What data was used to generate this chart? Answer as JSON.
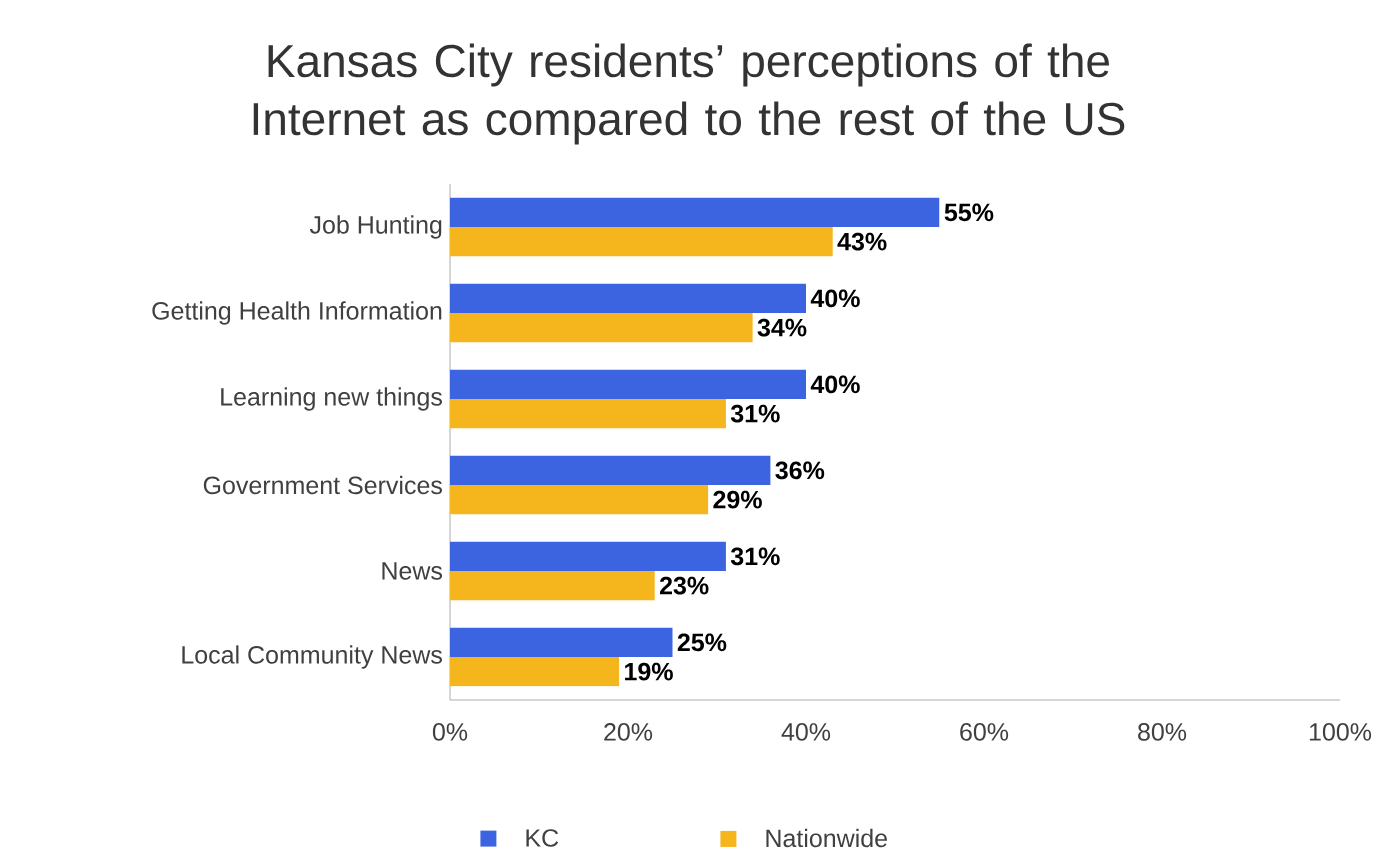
{
  "chart_data": {
    "type": "bar",
    "orientation": "horizontal",
    "title": "Kansas City residents’ perceptions of the Internet as compared to the rest of the US",
    "categories": [
      "Job Hunting",
      "Getting Health Information",
      "Learning new things",
      "Government Services",
      "News",
      "Local Community News"
    ],
    "series": [
      {
        "name": "KC",
        "color": "#3d64e0",
        "values": [
          55,
          40,
          40,
          36,
          31,
          25
        ],
        "value_labels": [
          "55%",
          "40%",
          "40%",
          "36%",
          "31%",
          "25%"
        ]
      },
      {
        "name": "Nationwide",
        "color": "#f5b51c",
        "values": [
          43,
          34,
          31,
          29,
          23,
          19
        ],
        "value_labels": [
          "43%",
          "34%",
          "31%",
          "29%",
          "23%",
          "19%"
        ]
      }
    ],
    "xlim": [
      0,
      100
    ],
    "xticks": [
      {
        "value": 0,
        "label": "0%"
      },
      {
        "value": 20,
        "label": "20%"
      },
      {
        "value": 40,
        "label": "40%"
      },
      {
        "value": 60,
        "label": "60%"
      },
      {
        "value": 80,
        "label": "80%"
      },
      {
        "value": 100,
        "label": "100%"
      }
    ],
    "grid": false,
    "legend": "bottom"
  }
}
